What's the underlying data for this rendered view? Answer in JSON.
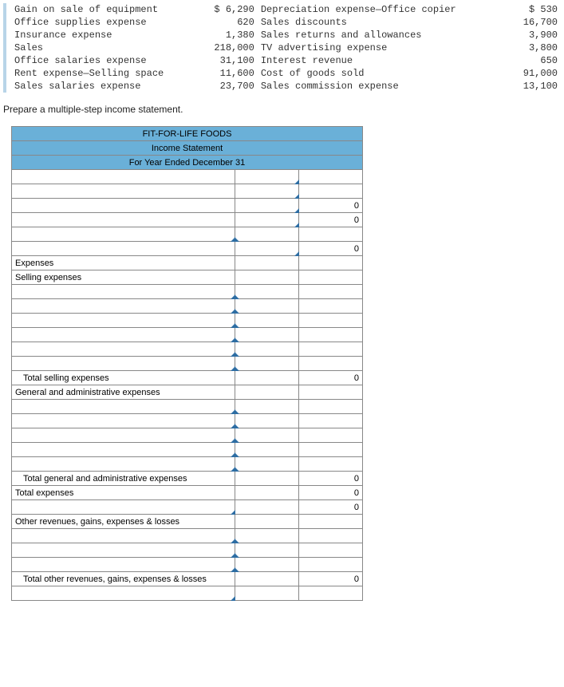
{
  "topdata": {
    "left": [
      {
        "label": "Gain on sale of equipment",
        "amount": "$ 6,290"
      },
      {
        "label": "Office supplies expense",
        "amount": "620"
      },
      {
        "label": "Insurance expense",
        "amount": "1,380"
      },
      {
        "label": "Sales",
        "amount": "218,000"
      },
      {
        "label": "Office salaries expense",
        "amount": "31,100"
      },
      {
        "label": "Rent expense—Selling space",
        "amount": "11,600"
      },
      {
        "label": "Sales salaries expense",
        "amount": "23,700"
      }
    ],
    "right": [
      {
        "label": "Depreciation expense—Office copier",
        "amount": "$ 530"
      },
      {
        "label": "Sales discounts",
        "amount": "16,700"
      },
      {
        "label": "Sales returns and allowances",
        "amount": "3,900"
      },
      {
        "label": "TV advertising expense",
        "amount": "3,800"
      },
      {
        "label": "Interest revenue",
        "amount": "650"
      },
      {
        "label": "Cost of goods sold",
        "amount": "91,000"
      },
      {
        "label": "Sales commission expense",
        "amount": "13,100"
      }
    ]
  },
  "instruction": "Prepare a multiple-step income statement.",
  "worksheet": {
    "title_company": "FIT-FOR-LIFE FOODS",
    "title_statement": "Income Statement",
    "title_period": "For Year Ended December 31",
    "rows": [
      {
        "desc": "",
        "a_corner": true,
        "b": "",
        "a": ""
      },
      {
        "desc": "",
        "a_corner": true,
        "b": "",
        "a": ""
      },
      {
        "desc": "",
        "a_corner": true,
        "b": "0",
        "a": ""
      },
      {
        "desc": "",
        "a_corner": true,
        "b": "0",
        "a": ""
      },
      {
        "desc": "",
        "a": "",
        "b": "",
        "desc_corner": true,
        "a_corner_r": true
      },
      {
        "desc": "",
        "a_corner": true,
        "b": "0",
        "a": ""
      },
      {
        "desc": "Expenses",
        "a": "",
        "b": ""
      },
      {
        "desc": "Selling expenses",
        "a": "",
        "b": ""
      },
      {
        "desc": "",
        "a": "",
        "b": "",
        "indent": 1,
        "desc_corner": true,
        "a_corner_r": true
      },
      {
        "desc": "",
        "a": "",
        "b": "",
        "indent": 1,
        "desc_corner": true,
        "a_corner_r": true
      },
      {
        "desc": "",
        "a": "",
        "b": "",
        "indent": 1,
        "desc_corner": true,
        "a_corner_r": true
      },
      {
        "desc": "",
        "a": "",
        "b": "",
        "indent": 1,
        "desc_corner": true,
        "a_corner_r": true
      },
      {
        "desc": "",
        "a": "",
        "b": "",
        "indent": 1,
        "desc_corner": true,
        "a_corner_r": true
      },
      {
        "desc": "",
        "a": "",
        "b": "",
        "indent": 1,
        "desc_corner": true,
        "a_corner_r": true
      },
      {
        "desc": "Total selling expenses",
        "a": "",
        "b": "0",
        "indent": 1
      },
      {
        "desc": "General and administrative expenses",
        "a": "",
        "b": ""
      },
      {
        "desc": "",
        "a": "",
        "b": "",
        "indent": 1,
        "desc_corner": true,
        "a_corner_r": true
      },
      {
        "desc": "",
        "a": "",
        "b": "",
        "indent": 1,
        "desc_corner": true,
        "a_corner_r": true
      },
      {
        "desc": "",
        "a": "",
        "b": "",
        "indent": 1,
        "desc_corner": true,
        "a_corner_r": true
      },
      {
        "desc": "",
        "a": "",
        "b": "",
        "indent": 1,
        "desc_corner": true,
        "a_corner_r": true
      },
      {
        "desc": "",
        "a": "",
        "b": "",
        "indent": 1,
        "desc_corner": true,
        "a_corner_r": true
      },
      {
        "desc": "Total general and administrative expenses",
        "a": "",
        "b": "0",
        "indent": 1
      },
      {
        "desc": "Total expenses",
        "a": "",
        "b": "0"
      },
      {
        "desc": "",
        "a": "",
        "b": "0",
        "desc_corner": true
      },
      {
        "desc": "Other revenues, gains, expenses & losses",
        "a": "",
        "b": ""
      },
      {
        "desc": "",
        "a": "",
        "b": "",
        "indent": 1,
        "desc_corner": true,
        "a_corner_r": true
      },
      {
        "desc": "",
        "a": "",
        "b": "",
        "indent": 1,
        "desc_corner": true,
        "a_corner_r": true
      },
      {
        "desc": "",
        "a": "",
        "b": "",
        "indent": 1,
        "desc_corner": true,
        "a_corner_r": true
      },
      {
        "desc": "Total other revenues, gains, expenses & losses",
        "a": "",
        "b": "0",
        "indent": 1
      },
      {
        "desc": "",
        "a": "",
        "b": "",
        "desc_corner": true
      }
    ]
  }
}
